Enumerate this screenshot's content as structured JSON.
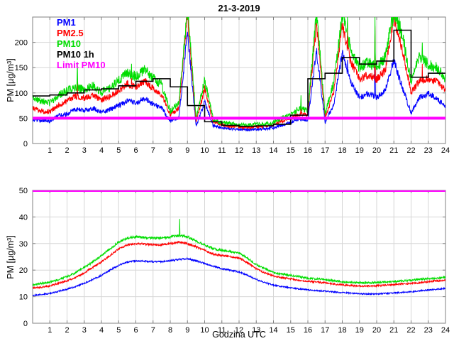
{
  "title": "21-3-2019",
  "style": {
    "background": "#ffffff",
    "frame_color": "#808080",
    "grid_color": "#d6d6d6",
    "tick_label_color": "#000000"
  },
  "legend": {
    "items": [
      {
        "label": "PM1",
        "color": "#0000ff"
      },
      {
        "label": "PM2.5",
        "color": "#ff0000"
      },
      {
        "label": "PM10",
        "color": "#00dd00"
      },
      {
        "label": "PM10 1h",
        "color": "#000000"
      },
      {
        "label": "Limit PM10",
        "color": "#ff00ff"
      }
    ]
  },
  "chart_data": [
    {
      "type": "line",
      "title": "21-3-2019",
      "ylabel": "PM [µg/m³]",
      "xlabel": "",
      "xlim": [
        0,
        24
      ],
      "ylim": [
        0,
        250
      ],
      "xticks": [
        1,
        2,
        3,
        4,
        5,
        6,
        7,
        8,
        9,
        10,
        11,
        12,
        13,
        14,
        15,
        16,
        17,
        18,
        19,
        20,
        21,
        22,
        23,
        24
      ],
      "yticks": [
        0,
        50,
        100,
        150,
        200
      ],
      "grid": true,
      "legend_position": "top-left-inside",
      "anchor_step_h": 0.5,
      "series": [
        {
          "name": "PM1",
          "color": "#0000ff",
          "noise": [
            1.2,
            0.05
          ],
          "values": [
            46,
            46,
            44,
            55,
            58,
            68,
            65,
            70,
            62,
            67,
            75,
            85,
            80,
            89,
            78,
            70,
            44,
            50,
            220,
            34,
            82,
            35,
            31,
            29,
            28,
            27,
            28,
            29,
            31,
            36,
            42,
            48,
            46,
            185,
            42,
            75,
            180,
            120,
            92,
            98,
            92,
            105,
            165,
            110,
            60,
            92,
            98,
            90,
            72
          ],
          "spikes": [
            [
              18.3,
              160
            ],
            [
              19.9,
              170
            ]
          ]
        },
        {
          "name": "PM2.5",
          "color": "#ff0000",
          "noise": [
            1.5,
            0.05
          ],
          "values": [
            70,
            64,
            62,
            76,
            84,
            94,
            90,
            96,
            86,
            93,
            104,
            118,
            112,
            124,
            109,
            98,
            56,
            70,
            255,
            42,
            108,
            43,
            37,
            34,
            33,
            32,
            33,
            34,
            37,
            44,
            50,
            58,
            57,
            235,
            52,
            100,
            235,
            160,
            127,
            135,
            127,
            145,
            250,
            185,
            100,
            125,
            128,
            122,
            106
          ],
          "spikes": [
            [
              2.6,
              122
            ],
            [
              5.75,
              131
            ],
            [
              15.6,
              80
            ],
            [
              18.3,
              228
            ],
            [
              19.9,
              225
            ],
            [
              22.65,
              152
            ]
          ]
        },
        {
          "name": "PM10",
          "color": "#00dd00",
          "noise": [
            2,
            0.06
          ],
          "values": [
            90,
            84,
            80,
            96,
            104,
            112,
            106,
            114,
            102,
            110,
            124,
            140,
            132,
            147,
            129,
            116,
            64,
            80,
            268,
            50,
            125,
            48,
            42,
            39,
            37,
            36,
            38,
            39,
            42,
            50,
            58,
            68,
            66,
            258,
            60,
            120,
            258,
            185,
            150,
            160,
            150,
            170,
            262,
            215,
            120,
            175,
            155,
            150,
            128
          ],
          "spikes": [
            [
              2.6,
              160
            ],
            [
              5.75,
              168
            ],
            [
              15.6,
              95
            ],
            [
              18.3,
              250
            ],
            [
              19.9,
              245
            ],
            [
              22.65,
              198
            ]
          ]
        },
        {
          "name": "PM10 1h",
          "color": "#000000",
          "type": "step",
          "values": [
            94,
            96,
            100,
            106,
            108,
            114,
            123,
            128,
            112,
            75,
            43,
            36,
            34,
            35,
            38,
            56,
            128,
            139,
            170,
            157,
            163,
            224,
            131,
            139
          ]
        },
        {
          "name": "Limit PM10",
          "color": "#ff00ff",
          "type": "hline",
          "value": 50
        }
      ]
    },
    {
      "type": "line",
      "title": "",
      "ylabel": "PM [µg/m³]",
      "xlabel": "Godzina UTC",
      "xlim": [
        0,
        24
      ],
      "ylim": [
        0,
        50
      ],
      "xticks": [
        1,
        2,
        3,
        4,
        5,
        6,
        7,
        8,
        9,
        10,
        11,
        12,
        13,
        14,
        15,
        16,
        17,
        18,
        19,
        20,
        21,
        22,
        23,
        24
      ],
      "yticks": [
        0,
        10,
        20,
        30,
        40,
        50
      ],
      "grid": true,
      "anchor_step_h": 0.5,
      "series": [
        {
          "name": "PM1",
          "color": "#0000ff",
          "noise": [
            0.22,
            0.003
          ],
          "values": [
            10.5,
            10.8,
            11.2,
            12,
            12.8,
            13.8,
            15,
            16.5,
            18,
            20,
            21.8,
            23,
            23.5,
            23.4,
            23.2,
            23.2,
            23.5,
            24,
            24.3,
            23.5,
            22.5,
            21.5,
            20.5,
            20,
            19.3,
            18,
            16.5,
            15.3,
            14.3,
            13.8,
            13.3,
            12.9,
            12.6,
            12.3,
            12.1,
            11.8,
            11.5,
            11.3,
            11.1,
            11,
            11,
            11.2,
            11.4,
            11.6,
            11.9,
            12.2,
            12.5,
            12.8,
            13.1
          ]
        },
        {
          "name": "PM2.5",
          "color": "#ff0000",
          "noise": [
            0.28,
            0.003
          ],
          "values": [
            13.2,
            13.6,
            14,
            15,
            16,
            17.3,
            19,
            21,
            23,
            25.5,
            28,
            29.5,
            30,
            29.8,
            29.5,
            29.5,
            30,
            30.5,
            30,
            28.8,
            27.5,
            26,
            25.5,
            25,
            24.5,
            22.8,
            20.5,
            19,
            17.8,
            17.2,
            16.7,
            16.2,
            15.8,
            15.5,
            15.2,
            14.8,
            14.4,
            14.2,
            14,
            14,
            14.1,
            14.3,
            14.5,
            14.8,
            15,
            15.3,
            15.6,
            15.9,
            16.2
          ]
        },
        {
          "name": "PM10",
          "color": "#00dd00",
          "noise": [
            0.32,
            0.004
          ],
          "values": [
            14.5,
            15,
            15.5,
            16.5,
            17.5,
            19,
            21,
            23,
            25.5,
            28,
            30.5,
            32,
            32.5,
            32.3,
            32,
            32,
            32.5,
            33,
            32.5,
            31,
            29.5,
            28,
            27.5,
            27,
            26.5,
            24.5,
            22,
            20.5,
            19,
            18.5,
            18,
            17.5,
            17,
            16.7,
            16.5,
            16,
            15.6,
            15.4,
            15.3,
            15.2,
            15.3,
            15.5,
            15.7,
            16,
            16.2,
            16.5,
            16.8,
            17,
            17.3
          ],
          "spikes": [
            [
              8.55,
              39.5
            ]
          ]
        },
        {
          "name": "Limit PM10",
          "color": "#ff00ff",
          "type": "hline",
          "value": 50
        }
      ]
    }
  ]
}
